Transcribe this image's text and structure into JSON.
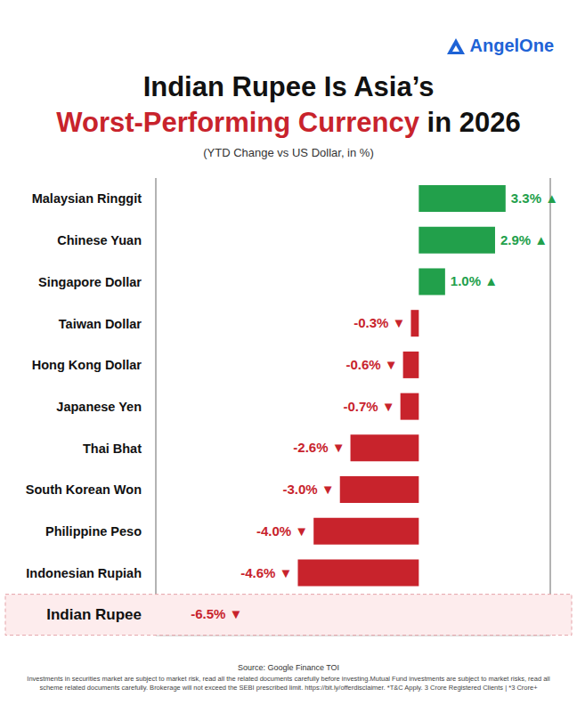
{
  "chart_data": {
    "type": "bar",
    "brand": "AngelOne",
    "title": "Indian Rupee Is Asia’s Worst-Performing Currency in 2026",
    "subtitle": "(YTD Change vs US Dollar, in %)",
    "categories": [
      "Malaysian Ringgit",
      "Chinese Yuan",
      "Singapore Dollar",
      "Taiwan Dollar",
      "Hong Kong Dollar",
      "Japanese Yen",
      "Thai Bhat",
      "South Korean Won",
      "Philippine Peso",
      "Indonesian Rupiah",
      "Indian Rupee"
    ],
    "values": [
      3.3,
      2.9,
      1.0,
      -0.3,
      -0.6,
      -0.7,
      -2.6,
      -3.0,
      -4.0,
      -4.6,
      -6.5
    ],
    "value_labels": [
      "3.3% ▲",
      "2.9% ▲",
      "1.0% ▲",
      "-0.3% ▼",
      "-0.6% ▼",
      "-0.7% ▼",
      "-2.6% ▼",
      "-3.0% ▼",
      "-4.0% ▼",
      "-4.6% ▼",
      "-6.5% ▼"
    ],
    "colors": [
      "#22a04b",
      "#22a04b",
      "#22a04b",
      "#c8232c",
      "#c8232c",
      "#c8232c",
      "#c8232c",
      "#c8232c",
      "#c8232c",
      "#c8232c",
      "#c8232c"
    ],
    "orientation": "horizontal",
    "data_labels": true,
    "tick_labels": "y",
    "grid": true,
    "xlim": [
      -10,
      5
    ],
    "xticks": [
      0
    ],
    "source": "Source: Google Finance TOI",
    "disclaimer": "Investments in securities market are subject to market risk, read all the related documents carefully before investing.Mutual Fund investments are subject to market risks, read all scheme related documents carefully. Brokerage will not exceed the SEBI prescribed limit. https://bit.ly/offerdisclaimer. *T&C Apply. 3 Crore Registered Clients | *3 Crore+"
  }
}
